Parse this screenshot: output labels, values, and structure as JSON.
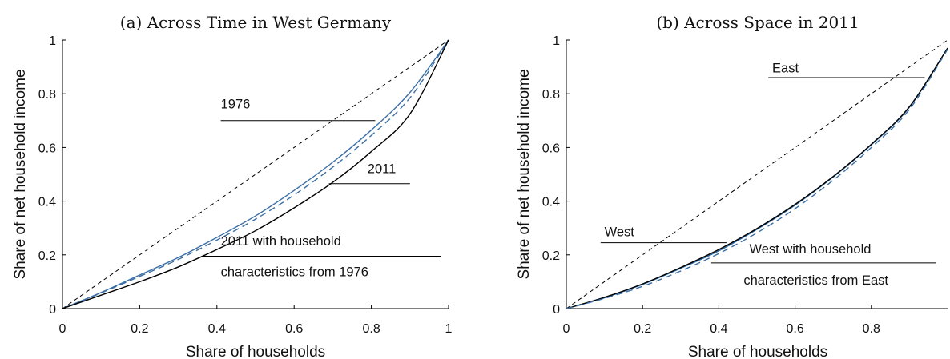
{
  "colors": {
    "line": "#000000",
    "blue": "#3a6ea5",
    "solid_blue": "#2f6aa0",
    "black": "#000000"
  },
  "chart_data": [
    {
      "type": "line",
      "title": "(a) Across Time in West Germany",
      "xlabel": "Share of households",
      "ylabel": "Share of net household income",
      "xlim": [
        0,
        1
      ],
      "ylim": [
        0,
        1
      ],
      "xticks": [
        "0",
        "0.2",
        "0.4",
        "0.6",
        "0.8",
        "1"
      ],
      "yticks": [
        "0",
        "0.2",
        "0.4",
        "0.6",
        "0.8",
        "1"
      ],
      "grid": false,
      "series": [
        {
          "name": "equality",
          "style": "dashed",
          "color": "#000000",
          "x": [
            0,
            1
          ],
          "y": [
            0,
            1
          ]
        },
        {
          "name": "1976",
          "style": "solid",
          "color": "#3a6ea5",
          "x": [
            0,
            0.1,
            0.2,
            0.3,
            0.4,
            0.5,
            0.6,
            0.7,
            0.8,
            0.9,
            1.0
          ],
          "y": [
            0,
            0.06,
            0.125,
            0.19,
            0.265,
            0.345,
            0.44,
            0.545,
            0.665,
            0.805,
            1.0
          ]
        },
        {
          "name": "2011 with household characteristics from 1976",
          "style": "dashed",
          "color": "#3a6ea5",
          "x": [
            0,
            0.1,
            0.2,
            0.3,
            0.4,
            0.5,
            0.6,
            0.7,
            0.8,
            0.9,
            1.0
          ],
          "y": [
            0,
            0.058,
            0.12,
            0.183,
            0.255,
            0.333,
            0.423,
            0.527,
            0.645,
            0.785,
            1.0
          ]
        },
        {
          "name": "2011",
          "style": "solid",
          "color": "#000000",
          "x": [
            0,
            0.1,
            0.2,
            0.3,
            0.4,
            0.5,
            0.6,
            0.7,
            0.8,
            0.9,
            1.0
          ],
          "y": [
            0,
            0.05,
            0.1,
            0.155,
            0.22,
            0.29,
            0.375,
            0.47,
            0.585,
            0.725,
            1.0
          ]
        }
      ],
      "annotations": [
        {
          "text": "1976",
          "x": 0.41,
          "y": 0.745,
          "line_x": [
            0.41,
            0.81
          ],
          "line_y": 0.7
        },
        {
          "text": "2011",
          "x": 0.79,
          "y": 0.505,
          "line_x": [
            0.69,
            0.9
          ],
          "line_y": 0.465
        },
        {
          "text": "2011 with household",
          "x": 0.41,
          "y": 0.235,
          "line_x": [
            0.36,
            0.98
          ],
          "line_y": 0.195
        },
        {
          "text": "characteristics from 1976",
          "x": 0.41,
          "y": 0.12
        }
      ]
    },
    {
      "type": "line",
      "title": "(b) Across Space in 2011",
      "xlabel": "Share of households",
      "ylabel": "Share of net household income",
      "xlim": [
        0,
        1
      ],
      "ylim": [
        0,
        1
      ],
      "xticks": [
        "0",
        "0.2",
        "0.4",
        "0.6",
        "0.8"
      ],
      "yticks": [
        "0",
        "0.2",
        "0.4",
        "0.6",
        "0.8",
        "1"
      ],
      "grid": false,
      "series": [
        {
          "name": "equality",
          "style": "dashed",
          "color": "#000000",
          "x": [
            0,
            1
          ],
          "y": [
            0,
            1
          ]
        },
        {
          "name": "East",
          "style": "solid",
          "color": "#2f6aa0",
          "x": [
            0,
            0.1,
            0.2,
            0.3,
            0.4,
            0.5,
            0.6,
            0.7,
            0.8,
            0.9,
            1.0
          ],
          "y": [
            0,
            0.04,
            0.09,
            0.15,
            0.215,
            0.295,
            0.385,
            0.49,
            0.61,
            0.75,
            0.97
          ]
        },
        {
          "name": "West",
          "style": "solid",
          "color": "#000000",
          "x": [
            0,
            0.1,
            0.2,
            0.3,
            0.4,
            0.5,
            0.6,
            0.7,
            0.8,
            0.9,
            1.0
          ],
          "y": [
            0,
            0.042,
            0.092,
            0.153,
            0.22,
            0.298,
            0.388,
            0.492,
            0.612,
            0.752,
            0.97
          ]
        },
        {
          "name": "West with household characteristics from East",
          "style": "dashed",
          "color": "#3a6ea5",
          "x": [
            0,
            0.1,
            0.2,
            0.3,
            0.4,
            0.5,
            0.6,
            0.7,
            0.8,
            0.9,
            1.0
          ],
          "y": [
            0,
            0.038,
            0.083,
            0.14,
            0.205,
            0.282,
            0.372,
            0.478,
            0.6,
            0.742,
            0.965
          ]
        }
      ],
      "annotations": [
        {
          "text": "East",
          "x": 0.54,
          "y": 0.88,
          "line_x": [
            0.53,
            0.94
          ],
          "line_y": 0.86
        },
        {
          "text": "West",
          "x": 0.1,
          "y": 0.27,
          "line_x": [
            0.09,
            0.42
          ],
          "line_y": 0.245
        },
        {
          "text": "West with household",
          "x": 0.48,
          "y": 0.205,
          "line_x": [
            0.38,
            0.97
          ],
          "line_y": 0.17
        },
        {
          "text": "characteristics from East",
          "x": 0.465,
          "y": 0.09
        }
      ]
    }
  ]
}
